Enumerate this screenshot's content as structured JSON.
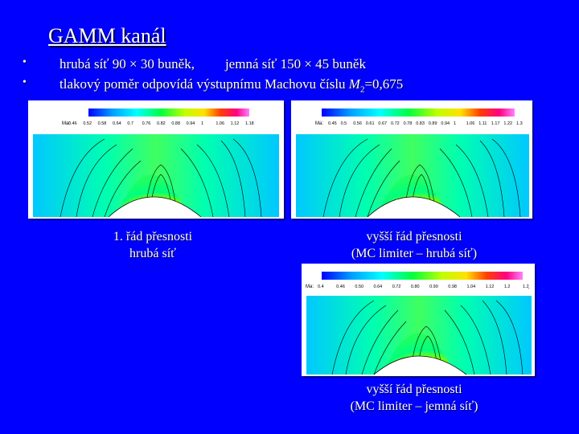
{
  "slide": {
    "title": "GAMM kanál",
    "bullets": [
      {
        "symbol": "•",
        "text_a": "hrubá síť 90 × 30 buněk,",
        "text_b": "jemná síť 150 × 45 buněk"
      },
      {
        "symbol": "•",
        "text_a": "tlakový poměr odpovídá výstupnímu Machovu číslu",
        "math_var": "M",
        "math_sub": "2",
        "math_rest": "=0,675"
      }
    ]
  },
  "panels": [
    {
      "legend_title": "Ma:",
      "legend_ticks": [
        "0.46",
        "0.52",
        "0.58",
        "0.64",
        "0.7",
        "0.76",
        "0.82",
        "0.88",
        "0.94",
        "1",
        "1.06",
        "1.12",
        "1.18"
      ],
      "caption_line1": "1. řád přesnosti",
      "caption_line2": "hrubá síť"
    },
    {
      "legend_title": "Ma:",
      "legend_ticks": [
        "0.45",
        "0.5",
        "0.56",
        "0.61",
        "0.67",
        "0.72",
        "0.78",
        "0.83",
        "0.89",
        "0.94",
        "1",
        "1.06",
        "1.11",
        "1.17",
        "1.22",
        "1.3"
      ],
      "caption_line1": "vyšší řád přesnosti",
      "caption_line2": "(MC limiter – hrubá síť)"
    },
    {
      "legend_title": "Ma:",
      "legend_ticks": [
        "0.4",
        "0.46",
        "0.50",
        "0.64",
        "0.72",
        "0.80",
        "0.90",
        "0.98",
        "1.04",
        "1.12",
        "1.2",
        "1.2̧"
      ],
      "caption_line1": "vyšší řád přesnosti",
      "caption_line2": "(MC limiter – jemná síť)"
    }
  ],
  "colors": {
    "background": "#0000ff",
    "text": "#ffffff",
    "field_low": "#00c0ff",
    "field_mid": "#00ff66",
    "field_high": "#ff00aa"
  }
}
